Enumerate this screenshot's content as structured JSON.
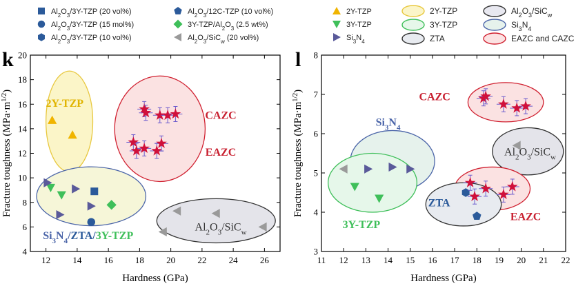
{
  "legend": {
    "markers": [
      {
        "label": "Al₂O₃/3Y-TZP (20 vol%)",
        "marker": "square",
        "color": "#2b5a9a"
      },
      {
        "label": "Al₂O₃/3Y-TZP (15 mol%)",
        "marker": "circle",
        "color": "#2b5a9a"
      },
      {
        "label": "Al₂O₃/3Y-TZP (10 vol%)",
        "marker": "hexagon",
        "color": "#2b5a9a"
      },
      {
        "label": "Al₂O₃/12C-TZP (10 vol%)",
        "marker": "pentagon",
        "color": "#2b5a9a"
      },
      {
        "label": "3Y-TZP/Al₂O₃ (2.5 wt%)",
        "marker": "diamond",
        "color": "#3fbf5a"
      },
      {
        "label": "Al₂O₃/SiCw (20 vol%)",
        "marker": "triangle-left",
        "color": "#9a9a9a"
      },
      {
        "label": "2Y-TZP",
        "marker": "triangle-up",
        "color": "#f0b400"
      },
      {
        "label": "3Y-TZP",
        "marker": "triangle-down",
        "color": "#3fbf5a"
      },
      {
        "label": "Si₃N₄",
        "marker": "triangle-right",
        "color": "#5a5a9a"
      }
    ],
    "ellipses": [
      {
        "label": "2Y-TZP",
        "stroke": "#e8c840",
        "fill": "#fbf5c8"
      },
      {
        "label": "3Y-TZP",
        "stroke": "#3fbf5a",
        "fill": "#e6f7ea"
      },
      {
        "label": "ZTA",
        "stroke": "#333333",
        "fill": "#e8ebf0"
      },
      {
        "label": "Al₂O₃/SiCw",
        "stroke": "#333333",
        "fill": "#e8e8f0"
      },
      {
        "label": "Si₃N₄",
        "stroke": "#4a64a8",
        "fill": "#e6f2ec"
      },
      {
        "label": "EAZC and CAZC",
        "stroke": "#d02030",
        "fill": "#fbe2e2"
      }
    ]
  },
  "chart_data": [
    {
      "panel": "k",
      "type": "scatter",
      "xlabel": "Hardness (GPa)",
      "ylabel": "Fracture toughness (MPa·m1/2)",
      "xlim": [
        11,
        27
      ],
      "ylim": [
        4,
        20
      ],
      "xticks": [
        12,
        14,
        16,
        18,
        20,
        22,
        24,
        26
      ],
      "yticks": [
        4,
        6,
        8,
        10,
        12,
        14,
        16,
        18,
        20
      ],
      "regions": [
        {
          "label": "2Y-TZP",
          "cx": 13.5,
          "cy": 14.6,
          "rx": 1.5,
          "ry": 4.1,
          "stroke": "#e8c840",
          "fill": "#fbf5c8",
          "label_color": "#e0b400",
          "label_x": 13.2,
          "label_y": 15.8
        },
        {
          "label": "CAZC",
          "cx": 19.3,
          "cy": 14.0,
          "rx": 2.9,
          "ry": 4.3,
          "stroke": "#d02030",
          "fill": "#fbe2e2",
          "label_color": "#c82030",
          "label_x": 23.2,
          "label_y": 14.8
        },
        {
          "label": "EAZC",
          "cx": 19.3,
          "cy": 14.0,
          "rx": 0,
          "ry": 0,
          "stroke": "none",
          "fill": "none",
          "label_color": "#c82030",
          "label_x": 23.2,
          "label_y": 11.8
        },
        {
          "label": "Si₃N₄/ZTA/3Y-TZP",
          "cx": 14.9,
          "cy": 8.5,
          "rx": 3.5,
          "ry": 2.4,
          "stroke": "#4a64a8",
          "fill": "#f6f6d8",
          "label_color": "#2b5a9a",
          "label_x": 14.7,
          "label_y": 5.0
        },
        {
          "label": "Al₂O₃/SiCw",
          "cx": 22.9,
          "cy": 6.5,
          "rx": 3.8,
          "ry": 1.8,
          "stroke": "#333333",
          "fill": "#e4e4ea",
          "label_color": "#333333",
          "label_x": 23.2,
          "label_y": 5.7
        }
      ],
      "series": [
        {
          "name": "2Y-TZP",
          "marker": "triangle-up",
          "color": "#f0b400",
          "points": [
            [
              12.4,
              14.7
            ],
            [
              13.7,
              13.5
            ]
          ]
        },
        {
          "name": "Al₂O₃/3Y-TZP (20 vol%)",
          "marker": "square",
          "color": "#2b5a9a",
          "points": [
            [
              15.1,
              8.9
            ]
          ]
        },
        {
          "name": "Al₂O₃/3Y-TZP (15 mol%)",
          "marker": "circle",
          "color": "#2b5a9a",
          "points": [
            [
              14.9,
              6.4
            ]
          ]
        },
        {
          "name": "3Y-TZP/Al₂O₃ (2.5 wt%)",
          "marker": "diamond",
          "color": "#3fbf5a",
          "points": [
            [
              16.2,
              7.8
            ]
          ]
        },
        {
          "name": "3Y-TZP",
          "marker": "triangle-down",
          "color": "#3fbf5a",
          "points": [
            [
              12.3,
              9.2
            ],
            [
              13.0,
              8.6
            ]
          ]
        },
        {
          "name": "Si₃N₄",
          "marker": "triangle-right",
          "color": "#5a5a9a",
          "points": [
            [
              12.1,
              9.6
            ],
            [
              13.9,
              9.1
            ],
            [
              14.9,
              7.7
            ],
            [
              12.9,
              7.0
            ]
          ]
        },
        {
          "name": "Al₂O₃/SiCw (20 vol%)",
          "marker": "triangle-left",
          "color": "#9a9a9a",
          "points": [
            [
              20.4,
              7.3
            ],
            [
              22.9,
              7.1
            ],
            [
              19.5,
              5.6
            ],
            [
              25.9,
              6.0
            ]
          ]
        },
        {
          "name": "EAZC and CAZC",
          "marker": "star",
          "color": "#d0103a",
          "errorbars": true,
          "points": [
            [
              18.3,
              15.6
            ],
            [
              18.4,
              15.3
            ],
            [
              19.3,
              15.1
            ],
            [
              19.8,
              15.1
            ],
            [
              20.3,
              15.2
            ],
            [
              17.6,
              12.9
            ],
            [
              17.8,
              12.2
            ],
            [
              18.3,
              12.4
            ],
            [
              19.1,
              12.2
            ],
            [
              19.4,
              12.8
            ]
          ]
        }
      ]
    },
    {
      "panel": "l",
      "type": "scatter",
      "xlabel": "Hardness (GPa)",
      "ylabel": "Fracture toughness (MPa·m1/2)",
      "xlim": [
        11,
        22
      ],
      "ylim": [
        3,
        8
      ],
      "xticks": [
        11,
        12,
        13,
        14,
        15,
        16,
        17,
        18,
        19,
        20,
        21,
        22
      ],
      "yticks": [
        3,
        4,
        5,
        6,
        7,
        8
      ],
      "regions": [
        {
          "label": "Si₃N₄",
          "cx": 14.2,
          "cy": 5.3,
          "rx": 1.9,
          "ry": 0.78,
          "stroke": "#4a64a8",
          "fill": "#e6f2ec",
          "label_color": "#4a64a8",
          "label_x": 14.0,
          "label_y": 6.2
        },
        {
          "label": "3Y-TZP",
          "cx": 13.3,
          "cy": 4.75,
          "rx": 2.0,
          "ry": 0.75,
          "stroke": "#3fbf5a",
          "fill": "#e6f7ea",
          "label_color": "#3fbf5a",
          "label_x": 12.8,
          "label_y": 3.6
        },
        {
          "label": "CAZC",
          "cx": 19.3,
          "cy": 6.8,
          "rx": 1.7,
          "ry": 0.5,
          "stroke": "#d02030",
          "fill": "#fbe2e2",
          "label_color": "#c82030",
          "label_x": 16.1,
          "label_y": 6.85
        },
        {
          "label": "Al₂O₃/SiCw",
          "cx": 20.3,
          "cy": 5.55,
          "rx": 1.6,
          "ry": 0.6,
          "stroke": "#333333",
          "fill": "#e4e4ea",
          "label_color": "#333333",
          "label_x": 20.4,
          "label_y": 5.45
        },
        {
          "label": "EAZC",
          "cx": 18.7,
          "cy": 4.6,
          "rx": 1.7,
          "ry": 0.55,
          "stroke": "#d02030",
          "fill": "#fbe2e2",
          "label_color": "#c82030",
          "label_x": 20.2,
          "label_y": 3.8
        },
        {
          "label": "ZTA",
          "cx": 17.4,
          "cy": 4.2,
          "rx": 1.7,
          "ry": 0.55,
          "stroke": "#333333",
          "fill": "#e8ebf0",
          "label_color": "#2b5a9a",
          "label_x": 16.3,
          "label_y": 4.15
        }
      ],
      "series": [
        {
          "name": "Si₃N₄",
          "marker": "triangle-right",
          "color": "#5a5a9a",
          "points": [
            [
              13.1,
              5.1
            ],
            [
              14.2,
              5.15
            ],
            [
              15.0,
              5.1
            ]
          ]
        },
        {
          "name": "Al₂O₃/SiCw (20 vol%)",
          "marker": "triangle-left",
          "color": "#9a9a9a",
          "points": [
            [
              12.0,
              5.1
            ],
            [
              19.8,
              5.7
            ]
          ]
        },
        {
          "name": "3Y-TZP",
          "marker": "triangle-down",
          "color": "#3fbf5a",
          "points": [
            [
              12.5,
              4.65
            ],
            [
              13.6,
              4.35
            ]
          ]
        },
        {
          "name": "Al₂O₃/3Y-TZP (10 vol%)",
          "marker": "hexagon",
          "color": "#2b5a9a",
          "points": [
            [
              17.5,
              4.5
            ]
          ]
        },
        {
          "name": "Al₂O₃/12C-TZP (10 vol%)",
          "marker": "pentagon",
          "color": "#2b5a9a",
          "points": [
            [
              18.0,
              3.9
            ]
          ]
        },
        {
          "name": "EAZC and CAZC",
          "marker": "star",
          "color": "#d0103a",
          "errorbars": true,
          "points": [
            [
              18.3,
              6.9
            ],
            [
              18.4,
              6.95
            ],
            [
              19.2,
              6.75
            ],
            [
              19.8,
              6.65
            ],
            [
              20.2,
              6.7
            ],
            [
              17.7,
              4.75
            ],
            [
              17.9,
              4.4
            ],
            [
              18.4,
              4.6
            ],
            [
              19.2,
              4.45
            ],
            [
              19.6,
              4.65
            ]
          ]
        }
      ]
    }
  ]
}
